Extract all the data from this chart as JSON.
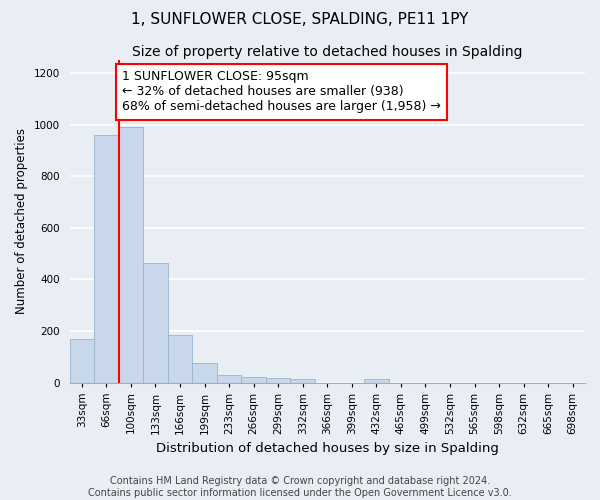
{
  "title": "1, SUNFLOWER CLOSE, SPALDING, PE11 1PY",
  "subtitle": "Size of property relative to detached houses in Spalding",
  "xlabel": "Distribution of detached houses by size in Spalding",
  "ylabel": "Number of detached properties",
  "categories": [
    "33sqm",
    "66sqm",
    "100sqm",
    "133sqm",
    "166sqm",
    "199sqm",
    "233sqm",
    "266sqm",
    "299sqm",
    "332sqm",
    "366sqm",
    "399sqm",
    "432sqm",
    "465sqm",
    "499sqm",
    "532sqm",
    "565sqm",
    "598sqm",
    "632sqm",
    "665sqm",
    "698sqm"
  ],
  "values": [
    170,
    960,
    990,
    465,
    185,
    75,
    28,
    20,
    18,
    12,
    0,
    0,
    13,
    0,
    0,
    0,
    0,
    0,
    0,
    0,
    0
  ],
  "bar_color": "#c8d8ea",
  "bar_edge_color": "#9ab4cc",
  "annotation_text": "1 SUNFLOWER CLOSE: 95sqm\n← 32% of detached houses are smaller (938)\n68% of semi-detached houses are larger (1,958) →",
  "annotation_box_color": "white",
  "annotation_box_edge_color": "red",
  "vline_color": "red",
  "vline_x_index": 2,
  "ylim": [
    0,
    1250
  ],
  "yticks": [
    0,
    200,
    400,
    600,
    800,
    1000,
    1200
  ],
  "background_color": "#e8eef4",
  "grid_color": "white",
  "footer_line1": "Contains HM Land Registry data © Crown copyright and database right 2024.",
  "footer_line2": "Contains public sector information licensed under the Open Government Licence v3.0.",
  "title_fontsize": 11,
  "subtitle_fontsize": 10,
  "xlabel_fontsize": 9.5,
  "ylabel_fontsize": 8.5,
  "tick_fontsize": 7.5,
  "annotation_fontsize": 9,
  "footer_fontsize": 7
}
